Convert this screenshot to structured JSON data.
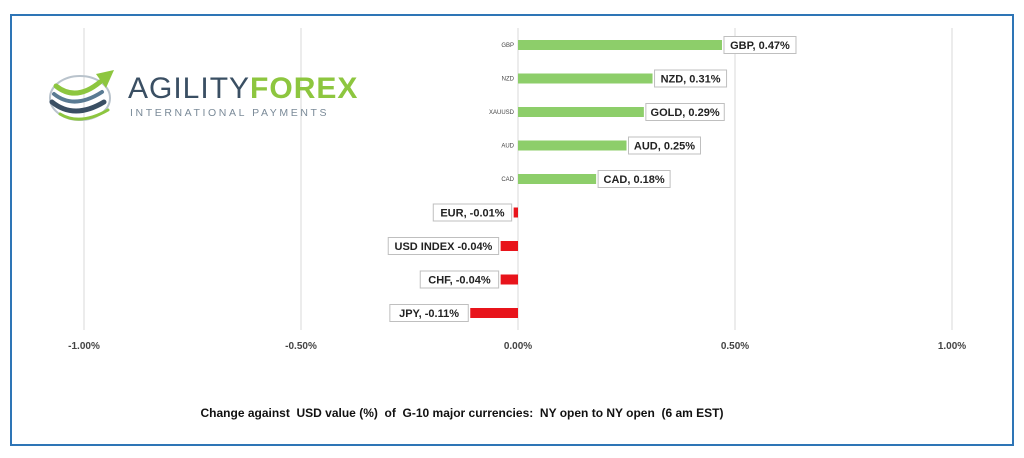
{
  "brand": {
    "name_part1": "AGILITY",
    "name_part2": "FOREX",
    "tagline": "INTERNATIONAL PAYMENTS",
    "color_part1": "#3a4f63",
    "color_part2": "#8dc63f",
    "logo_icon": "swoosh-globe-arrow-icon"
  },
  "colors": {
    "positive": "#8dce6a",
    "negative": "#e8141b",
    "border": "#2e75b6",
    "grid": "#d9d9d9"
  },
  "chart_data": {
    "type": "bar",
    "orientation": "horizontal",
    "title": "Change against  USD value (%)  of  G-10 major currencies:  NY open to NY open  (6 am EST)",
    "xlim": [
      -1.0,
      1.0
    ],
    "xticks": [
      "-1.00%",
      "-0.50%",
      "0.00%",
      "0.50%",
      "1.00%"
    ],
    "xtick_values": [
      -1.0,
      -0.5,
      0.0,
      0.5,
      1.0
    ],
    "grid": true,
    "categories": [
      "GBP",
      "NZD",
      "XAUUSD",
      "AUD",
      "CAD",
      "",
      "",
      "",
      ""
    ],
    "values": [
      0.47,
      0.31,
      0.29,
      0.25,
      0.18,
      -0.01,
      -0.04,
      -0.04,
      -0.11
    ],
    "data_labels": [
      "GBP, 0.47%",
      "NZD, 0.31%",
      "GOLD, 0.29%",
      "AUD, 0.25%",
      "CAD, 0.18%",
      "EUR, -0.01%",
      "USD INDEX -0.04%",
      "CHF, -0.04%",
      "JPY, -0.11%"
    ]
  }
}
